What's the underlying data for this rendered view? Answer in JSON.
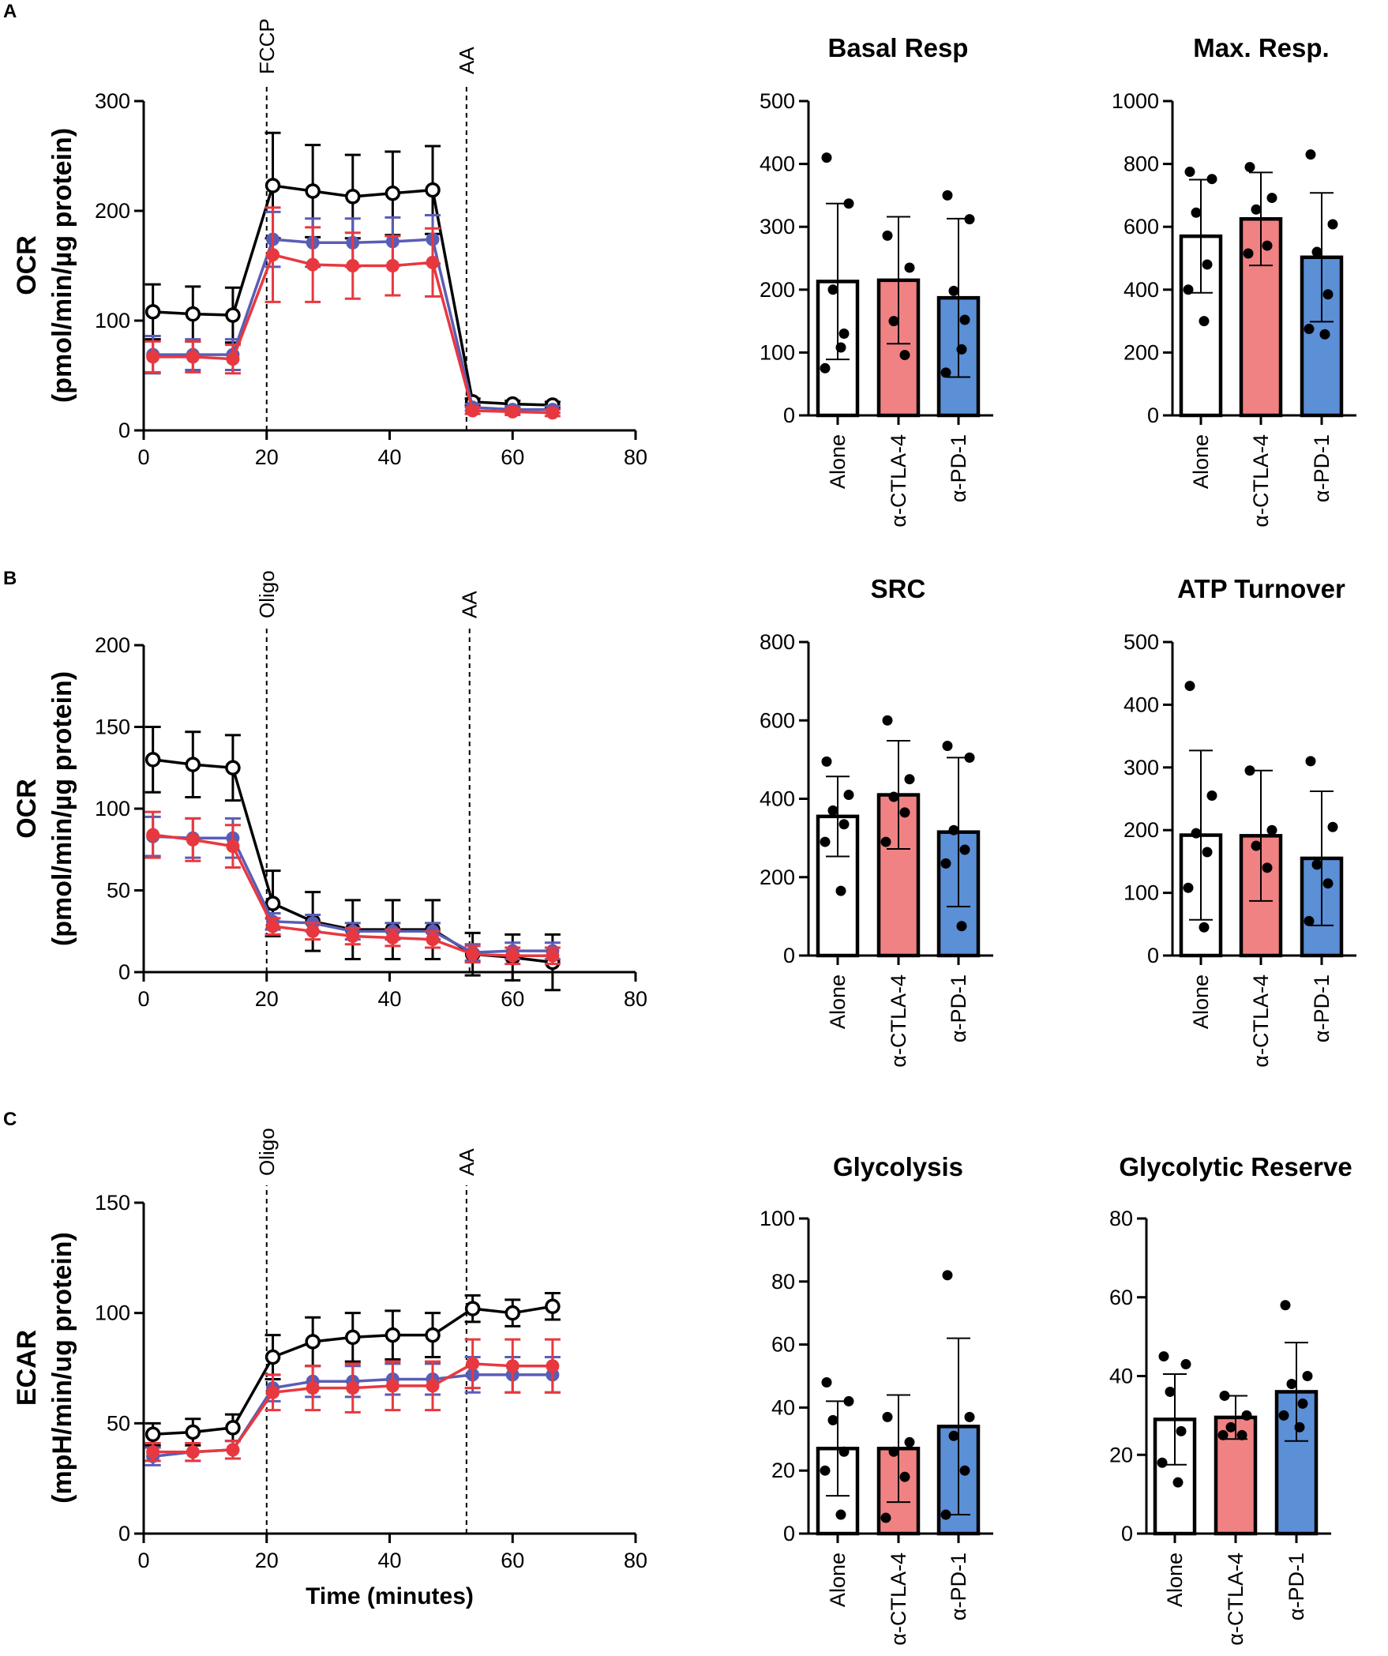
{
  "figure": {
    "panel_labels": [
      "A",
      "B",
      "C"
    ],
    "x_axis_title": "Time (minutes)"
  },
  "colors": {
    "alone": "#000000",
    "ctla4": "#e8383f",
    "pd1": "#5a5db5",
    "bar_alone": "#ffffff",
    "bar_ctla4": "#f08283",
    "bar_pd1": "#5b8fd6"
  },
  "chart_data": [
    {
      "id": "A_line",
      "type": "line",
      "ylabel_main": "OCR",
      "ylabel_sub": "(pmol/min/µg protein)",
      "xlim": [
        0,
        80
      ],
      "ylim": [
        0,
        300
      ],
      "xticks": [
        0,
        20,
        40,
        60,
        80
      ],
      "yticks": [
        0,
        100,
        200,
        300
      ],
      "injections": [
        {
          "x": 20,
          "label": "FCCP"
        },
        {
          "x": 52.5,
          "label": "AA"
        }
      ],
      "x": [
        1.5,
        8,
        14.5,
        21,
        27.5,
        34,
        40.5,
        47,
        53.5,
        60,
        66.5
      ],
      "series": [
        {
          "name": "Alone",
          "color_key": "alone",
          "marker": "open",
          "values": [
            108,
            106,
            105,
            223,
            218,
            213,
            216,
            219,
            26,
            24,
            23
          ],
          "err": [
            25,
            25,
            25,
            48,
            42,
            38,
            38,
            40,
            3,
            3,
            3
          ]
        },
        {
          "name": "α-PD-1",
          "color_key": "pd1",
          "marker": "filled",
          "values": [
            69,
            69,
            69,
            174,
            171,
            171,
            172,
            174,
            21,
            19,
            19
          ],
          "err": [
            17,
            14,
            14,
            25,
            22,
            22,
            22,
            22,
            3,
            3,
            3
          ]
        },
        {
          "name": "α-CTLA-4",
          "color_key": "ctla4",
          "marker": "filled",
          "values": [
            67,
            67,
            65,
            160,
            151,
            150,
            150,
            153,
            18,
            17,
            16
          ],
          "err": [
            14,
            14,
            13,
            43,
            34,
            30,
            27,
            31,
            3,
            3,
            3
          ]
        }
      ]
    },
    {
      "id": "A_basal",
      "type": "bar",
      "title": "Basal Resp",
      "ylim": [
        0,
        500
      ],
      "yticks": [
        0,
        100,
        200,
        300,
        400,
        500
      ],
      "categories": [
        "Alone",
        "α-CTLA-4",
        "α-PD-1"
      ],
      "values": [
        213,
        215,
        187
      ],
      "sd": [
        124,
        101,
        126
      ],
      "points": [
        [
          410,
          337,
          200,
          130,
          75,
          108
        ],
        [
          286,
          235,
          150,
          96
        ],
        [
          350,
          312,
          198,
          152,
          68,
          105
        ]
      ]
    },
    {
      "id": "A_max",
      "type": "bar",
      "title": "Max. Resp.",
      "ylim": [
        0,
        1000
      ],
      "yticks": [
        0,
        200,
        400,
        600,
        800,
        1000
      ],
      "categories": [
        "Alone",
        "α-CTLA-4",
        "α-PD-1"
      ],
      "values": [
        570,
        625,
        503
      ],
      "sd": [
        180,
        148,
        205
      ],
      "points": [
        [
          775,
          752,
          645,
          480,
          400,
          300
        ],
        [
          790,
          692,
          655,
          540,
          515
        ],
        [
          830,
          608,
          520,
          385,
          275,
          258
        ]
      ]
    },
    {
      "id": "B_line",
      "type": "line",
      "ylabel_main": "OCR",
      "ylabel_sub": "(pmol/min/µg protein)",
      "xlim": [
        0,
        80
      ],
      "ylim": [
        0,
        200
      ],
      "xticks": [
        0,
        20,
        40,
        60,
        80
      ],
      "yticks": [
        0,
        50,
        100,
        150,
        200
      ],
      "injections": [
        {
          "x": 20,
          "label": "Oligo"
        },
        {
          "x": 53,
          "label": "AA"
        }
      ],
      "x": [
        1.5,
        8,
        14.5,
        21,
        27.5,
        34,
        40.5,
        47,
        53.5,
        60,
        66.5
      ],
      "series": [
        {
          "name": "Alone",
          "color_key": "alone",
          "marker": "open",
          "values": [
            130,
            127,
            125,
            42,
            31,
            26,
            26,
            26,
            11,
            9,
            6
          ],
          "err": [
            20,
            20,
            20,
            20,
            18,
            18,
            18,
            18,
            13,
            14,
            17
          ]
        },
        {
          "name": "α-PD-1",
          "color_key": "pd1",
          "marker": "filled",
          "values": [
            83,
            82,
            82,
            31,
            30,
            25,
            25,
            25,
            12,
            13,
            13
          ],
          "err": [
            12,
            12,
            12,
            5,
            5,
            5,
            5,
            5,
            5,
            5,
            5
          ]
        },
        {
          "name": "α-CTLA-4",
          "color_key": "ctla4",
          "marker": "filled",
          "values": [
            84,
            81,
            77,
            28,
            25,
            22,
            21,
            20,
            11,
            10,
            10
          ],
          "err": [
            14,
            13,
            13,
            5,
            5,
            5,
            5,
            5,
            5,
            5,
            5
          ]
        }
      ]
    },
    {
      "id": "B_src",
      "type": "bar",
      "title": "SRC",
      "ylim": [
        0,
        800
      ],
      "yticks": [
        0,
        200,
        400,
        600,
        800
      ],
      "categories": [
        "Alone",
        "α-CTLA-4",
        "α-PD-1"
      ],
      "values": [
        355,
        410,
        315
      ],
      "sd": [
        102,
        138,
        190
      ],
      "points": [
        [
          495,
          410,
          370,
          335,
          290,
          165
        ],
        [
          600,
          450,
          405,
          365,
          290
        ],
        [
          535,
          505,
          320,
          270,
          235,
          75
        ]
      ]
    },
    {
      "id": "B_atp",
      "type": "bar",
      "title": "ATP Turnover",
      "ylim": [
        0,
        500
      ],
      "yticks": [
        0,
        100,
        200,
        300,
        400,
        500
      ],
      "categories": [
        "Alone",
        "α-CTLA-4",
        "α-PD-1"
      ],
      "values": [
        192,
        191,
        155
      ],
      "sd": [
        135,
        104,
        107
      ],
      "points": [
        [
          430,
          255,
          195,
          165,
          108,
          45
        ],
        [
          295,
          200,
          175,
          140
        ],
        [
          310,
          205,
          145,
          115,
          55
        ]
      ]
    },
    {
      "id": "C_line",
      "type": "line",
      "ylabel_main": "ECAR",
      "ylabel_sub": "(mpH/min/ug protein)",
      "xlabel": "Time (minutes)",
      "xlim": [
        0,
        80
      ],
      "ylim": [
        0,
        150
      ],
      "xticks": [
        0,
        20,
        40,
        60,
        80
      ],
      "yticks": [
        0,
        50,
        100,
        150
      ],
      "injections": [
        {
          "x": 20,
          "label": "Oligo"
        },
        {
          "x": 52.5,
          "label": "AA"
        }
      ],
      "x": [
        1.5,
        8,
        14.5,
        21,
        27.5,
        34,
        40.5,
        47,
        53.5,
        60,
        66.5
      ],
      "series": [
        {
          "name": "Alone",
          "color_key": "alone",
          "marker": "open",
          "values": [
            45,
            46,
            48,
            80,
            87,
            89,
            90,
            90,
            102,
            100,
            103
          ],
          "err": [
            5,
            6,
            6,
            10,
            11,
            11,
            11,
            10,
            6,
            6,
            6
          ]
        },
        {
          "name": "α-PD-1",
          "color_key": "pd1",
          "marker": "filled",
          "values": [
            35,
            37,
            38,
            66,
            69,
            69,
            70,
            70,
            72,
            72,
            72
          ],
          "err": [
            4,
            4,
            4,
            6,
            7,
            7,
            7,
            7,
            8,
            8,
            8
          ]
        },
        {
          "name": "α-CTLA-4",
          "color_key": "ctla4",
          "marker": "filled",
          "values": [
            37,
            37,
            38,
            64,
            66,
            66,
            67,
            67,
            77,
            76,
            76
          ],
          "err": [
            4,
            4,
            4,
            8,
            10,
            11,
            11,
            11,
            11,
            12,
            12
          ]
        }
      ]
    },
    {
      "id": "C_glyco",
      "type": "bar",
      "title": "Glycolysis",
      "ylim": [
        0,
        100
      ],
      "yticks": [
        0,
        20,
        40,
        60,
        80,
        100
      ],
      "categories": [
        "Alone",
        "α-CTLA-4",
        "α-PD-1"
      ],
      "values": [
        27,
        27,
        34
      ],
      "sd": [
        15,
        17,
        28
      ],
      "points": [
        [
          48,
          42,
          36,
          26,
          20,
          6
        ],
        [
          37,
          29,
          26,
          18,
          5
        ],
        [
          82,
          37,
          31,
          20,
          6
        ]
      ]
    },
    {
      "id": "C_reserve",
      "type": "bar",
      "title": "Glycolytic Reserve",
      "ylim": [
        0,
        80
      ],
      "yticks": [
        0,
        20,
        40,
        60,
        80
      ],
      "categories": [
        "Alone",
        "α-CTLA-4",
        "α-PD-1"
      ],
      "values": [
        29,
        29.5,
        36
      ],
      "sd": [
        11.5,
        5.5,
        12.5
      ],
      "points": [
        [
          45,
          43,
          36,
          26,
          18,
          13
        ],
        [
          35,
          30,
          27,
          25,
          25
        ],
        [
          58,
          40,
          38,
          33,
          30,
          27
        ]
      ]
    }
  ]
}
